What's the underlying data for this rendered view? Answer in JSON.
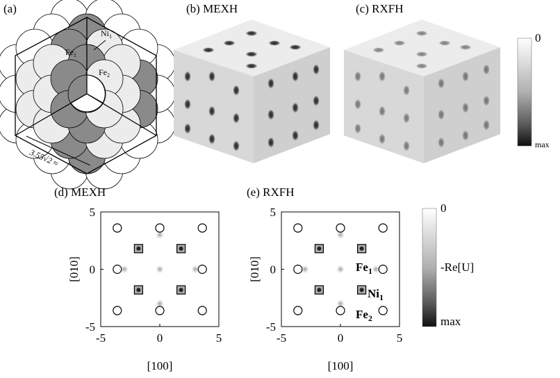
{
  "panel_a": {
    "label": "(a)",
    "atoms": [
      {
        "base": "Ni",
        "sub": "1"
      },
      {
        "base": "Fe",
        "sub": "1"
      },
      {
        "base": "Fe",
        "sub": "2"
      }
    ],
    "dimension": "3.55√2 ≈"
  },
  "panel_b": {
    "title": "(b) MEXH"
  },
  "panel_c": {
    "title": "(c) RXFH"
  },
  "colorbar_top": {
    "top": "0",
    "bottom": "max"
  },
  "panel_d": {
    "title": "(d) MEXH",
    "xlabel": "[100]",
    "ylabel": "[010]",
    "xlim": [
      -5,
      5
    ],
    "ylim": [
      -5,
      5
    ],
    "xticks": [
      -5,
      0,
      5
    ],
    "yticks": [
      -5,
      0,
      5
    ],
    "circles": {
      "x": [
        -3.6,
        0,
        3.6,
        -3.6,
        3.6,
        -3.6,
        0,
        3.6
      ],
      "y": [
        3.6,
        3.6,
        3.6,
        0,
        0,
        -3.6,
        -3.6,
        -3.6
      ]
    },
    "squares": {
      "x": [
        -1.8,
        1.8,
        -1.8,
        1.8
      ],
      "y": [
        1.8,
        1.8,
        -1.8,
        -1.8
      ]
    }
  },
  "panel_e": {
    "title": "(e) RXFH",
    "xlabel": "[100]",
    "ylabel": "[010]",
    "xlim": [
      -5,
      5
    ],
    "ylim": [
      -5,
      5
    ],
    "xticks": [
      -5,
      0,
      5
    ],
    "yticks": [
      -5,
      0,
      5
    ],
    "circles": {
      "x": [
        -3.6,
        0,
        3.6,
        -3.6,
        3.6,
        -3.6,
        0,
        3.6
      ],
      "y": [
        3.6,
        3.6,
        3.6,
        0,
        0,
        -3.6,
        -3.6,
        -3.6
      ]
    },
    "squares": {
      "x": [
        -1.8,
        1.8,
        -1.8,
        1.8
      ],
      "y": [
        1.8,
        1.8,
        -1.8,
        -1.8
      ]
    },
    "atoms": [
      {
        "base": "Fe",
        "sub": "1"
      },
      {
        "base": "Ni",
        "sub": "1"
      },
      {
        "base": "Fe",
        "sub": "2"
      }
    ]
  },
  "colorbar_bottom": {
    "top": "0",
    "middle": "-Re[U]",
    "bottom": "max"
  }
}
